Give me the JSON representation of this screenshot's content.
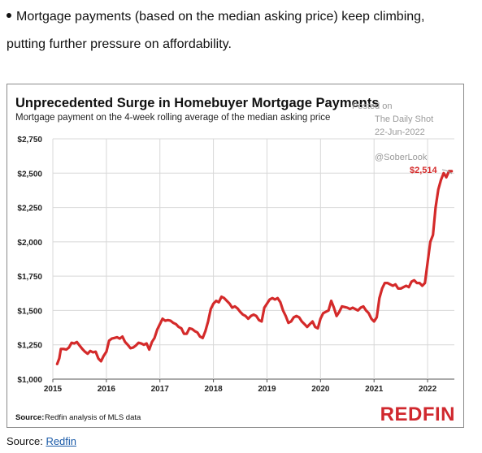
{
  "intro": {
    "line1": "Mortgage payments (based on the median asking price) keep climbing,",
    "line2": "putting further pressure on affordability."
  },
  "source_caption": {
    "label": "Source:",
    "link_text": "Redfin"
  },
  "watermark": {
    "posted_on": "Posted on",
    "outlet": "The Daily Shot",
    "date": "22-Jun-2022",
    "handle": "@SoberLook"
  },
  "colors": {
    "line": "#d42a2a",
    "brand": "#d0282e",
    "grid": "#d8d8d8",
    "axis": "#333333"
  },
  "chart_data": {
    "type": "line",
    "title": "Unprecedented Surge in Homebuyer Mortgage Payments",
    "subtitle": "Mortgage payment on the 4-week rolling average of the median asking price",
    "source_label": "Source:",
    "source_text": "Redfin analysis of MLS data",
    "brand": "REDFIN",
    "end_label": "$2,514",
    "x_ticks": [
      "2015",
      "2016",
      "2017",
      "2018",
      "2019",
      "2020",
      "2021",
      "2022"
    ],
    "y_ticks": [
      "$1,000",
      "$1,250",
      "$1,500",
      "$1,750",
      "$2,000",
      "$2,250",
      "$2,500",
      "$2,750"
    ],
    "xlim": [
      2015,
      2022.5
    ],
    "ylim": [
      1000,
      2750
    ],
    "grid": true,
    "series": [
      {
        "x": [
          2015.08,
          2015.12,
          2015.15,
          2015.2,
          2015.25,
          2015.3,
          2015.35,
          2015.4,
          2015.45,
          2015.5,
          2015.55,
          2015.6,
          2015.65,
          2015.7,
          2015.75,
          2015.8,
          2015.85,
          2015.9,
          2015.95,
          2016.0,
          2016.05,
          2016.1,
          2016.15,
          2016.2,
          2016.25,
          2016.3,
          2016.35,
          2016.4,
          2016.45,
          2016.5,
          2016.55,
          2016.6,
          2016.65,
          2016.7,
          2016.75,
          2016.8,
          2016.85,
          2016.9,
          2016.95,
          2017.0,
          2017.05,
          2017.1,
          2017.15,
          2017.2,
          2017.25,
          2017.3,
          2017.35,
          2017.4,
          2017.45,
          2017.5,
          2017.55,
          2017.6,
          2017.65,
          2017.7,
          2017.75,
          2017.8,
          2017.85,
          2017.9,
          2017.95,
          2018.0,
          2018.05,
          2018.1,
          2018.15,
          2018.2,
          2018.25,
          2018.3,
          2018.35,
          2018.4,
          2018.45,
          2018.5,
          2018.55,
          2018.6,
          2018.65,
          2018.7,
          2018.75,
          2018.8,
          2018.85,
          2018.9,
          2018.95,
          2019.0,
          2019.05,
          2019.1,
          2019.15,
          2019.2,
          2019.25,
          2019.3,
          2019.35,
          2019.4,
          2019.45,
          2019.5,
          2019.55,
          2019.6,
          2019.65,
          2019.7,
          2019.75,
          2019.8,
          2019.85,
          2019.9,
          2019.95,
          2020.0,
          2020.05,
          2020.1,
          2020.15,
          2020.2,
          2020.25,
          2020.3,
          2020.35,
          2020.4,
          2020.45,
          2020.5,
          2020.55,
          2020.6,
          2020.65,
          2020.7,
          2020.75,
          2020.8,
          2020.85,
          2020.9,
          2020.95,
          2021.0,
          2021.05,
          2021.1,
          2021.15,
          2021.2,
          2021.25,
          2021.3,
          2021.35,
          2021.4,
          2021.45,
          2021.5,
          2021.55,
          2021.6,
          2021.65,
          2021.7,
          2021.75,
          2021.8,
          2021.85,
          2021.9,
          2021.95,
          2022.0,
          2022.05,
          2022.1,
          2022.15,
          2022.2,
          2022.25,
          2022.3,
          2022.35,
          2022.4,
          2022.45
        ],
        "y": [
          1110,
          1150,
          1220,
          1220,
          1215,
          1230,
          1265,
          1260,
          1270,
          1245,
          1220,
          1200,
          1185,
          1205,
          1195,
          1200,
          1150,
          1130,
          1170,
          1200,
          1280,
          1295,
          1300,
          1305,
          1295,
          1310,
          1270,
          1250,
          1225,
          1230,
          1245,
          1265,
          1260,
          1250,
          1260,
          1215,
          1270,
          1300,
          1360,
          1400,
          1440,
          1425,
          1430,
          1425,
          1410,
          1400,
          1380,
          1370,
          1330,
          1330,
          1370,
          1365,
          1350,
          1340,
          1310,
          1300,
          1350,
          1420,
          1510,
          1550,
          1570,
          1560,
          1600,
          1590,
          1570,
          1550,
          1520,
          1530,
          1515,
          1490,
          1470,
          1460,
          1440,
          1460,
          1470,
          1460,
          1430,
          1420,
          1520,
          1550,
          1580,
          1590,
          1580,
          1590,
          1560,
          1500,
          1460,
          1410,
          1420,
          1450,
          1460,
          1450,
          1420,
          1400,
          1380,
          1400,
          1420,
          1380,
          1370,
          1440,
          1480,
          1490,
          1500,
          1570,
          1520,
          1460,
          1490,
          1530,
          1525,
          1520,
          1510,
          1520,
          1510,
          1500,
          1520,
          1530,
          1500,
          1480,
          1440,
          1420,
          1450,
          1590,
          1660,
          1700,
          1700,
          1690,
          1680,
          1690,
          1660,
          1660,
          1670,
          1680,
          1670,
          1710,
          1720,
          1700,
          1700,
          1680,
          1700,
          1850,
          2000,
          2050,
          2250,
          2380,
          2450,
          2500,
          2470,
          2514,
          2514
        ]
      }
    ]
  }
}
